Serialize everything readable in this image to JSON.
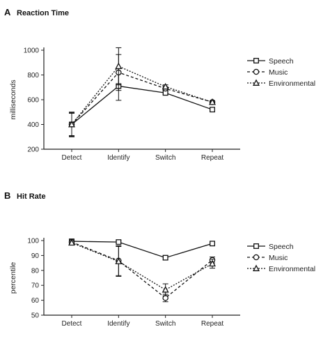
{
  "chart_data": [
    {
      "type": "line",
      "panel": "A",
      "title": "Reaction Time",
      "xlabel": "",
      "ylabel": "milliseconds",
      "categories": [
        "Detect",
        "Identify",
        "Switch",
        "Repeat"
      ],
      "ylim": [
        200,
        1000
      ],
      "yticks": [
        200,
        400,
        600,
        800,
        1000
      ],
      "legend": "right",
      "series": [
        {
          "name": "Speech",
          "marker": "square",
          "dash": "solid",
          "values": [
            400,
            710,
            655,
            520
          ],
          "err": [
            100,
            115,
            15,
            10
          ]
        },
        {
          "name": "Music",
          "marker": "circle",
          "dash": "dashed",
          "values": [
            400,
            820,
            690,
            580
          ],
          "err": [
            95,
            145,
            15,
            12
          ]
        },
        {
          "name": "Environmental",
          "marker": "triangle",
          "dash": "dotted",
          "values": [
            400,
            870,
            705,
            580
          ],
          "err": [
            90,
            150,
            15,
            10
          ]
        }
      ]
    },
    {
      "type": "line",
      "panel": "B",
      "title": "Hit Rate",
      "xlabel": "",
      "ylabel": "percentile",
      "categories": [
        "Detect",
        "Identify",
        "Switch",
        "Repeat"
      ],
      "ylim": [
        50,
        100
      ],
      "yticks": [
        50,
        60,
        70,
        80,
        90,
        100
      ],
      "legend": "right",
      "series": [
        {
          "name": "Speech",
          "marker": "square",
          "dash": "solid",
          "values": [
            99.5,
            99,
            88.5,
            98
          ],
          "err": [
            1,
            1,
            1.5,
            0.5
          ]
        },
        {
          "name": "Music",
          "marker": "circle",
          "dash": "dashed",
          "values": [
            99,
            86.5,
            61.5,
            87
          ],
          "err": [
            1,
            10,
            2.5,
            2
          ]
        },
        {
          "name": "Environmental",
          "marker": "triangle",
          "dash": "dotted",
          "values": [
            98.5,
            86,
            67,
            84.5
          ],
          "err": [
            1,
            10,
            4,
            3
          ]
        }
      ]
    }
  ]
}
